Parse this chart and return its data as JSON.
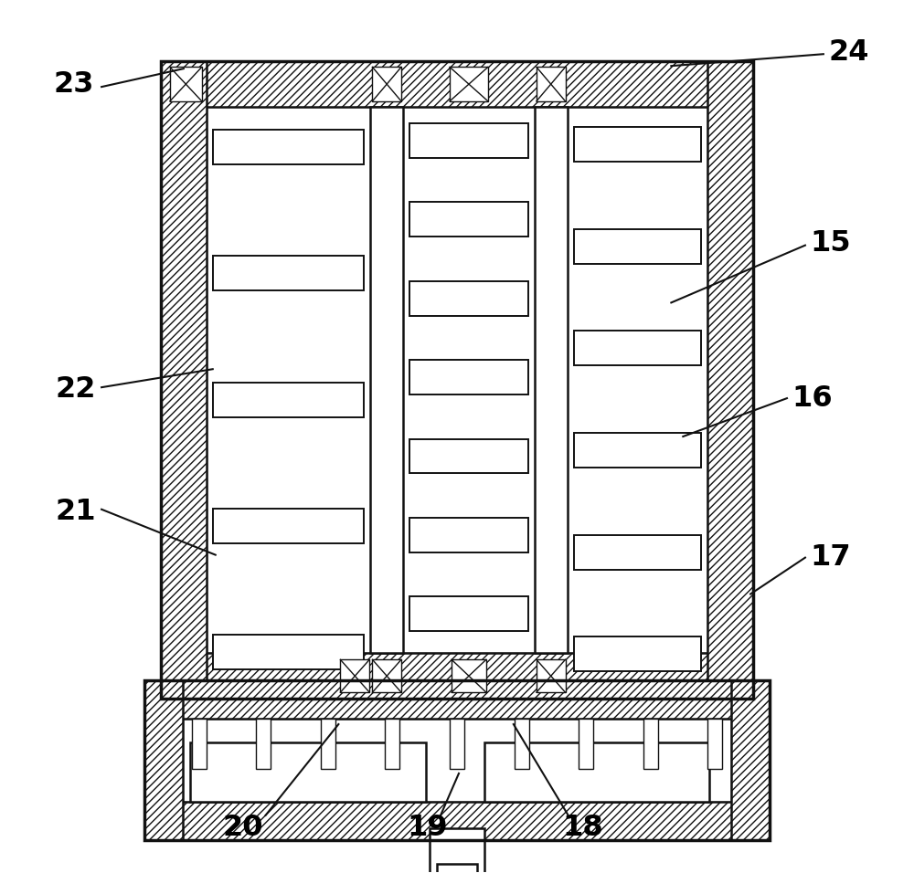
{
  "bg_color": "#ffffff",
  "lc": "#111111",
  "figsize": [
    10.0,
    9.56
  ],
  "dpi": 100,
  "lw_outer": 2.5,
  "lw_inner": 1.8,
  "lw_blade": 1.4,
  "lw_leader": 1.5,
  "lw_thin": 1.0
}
